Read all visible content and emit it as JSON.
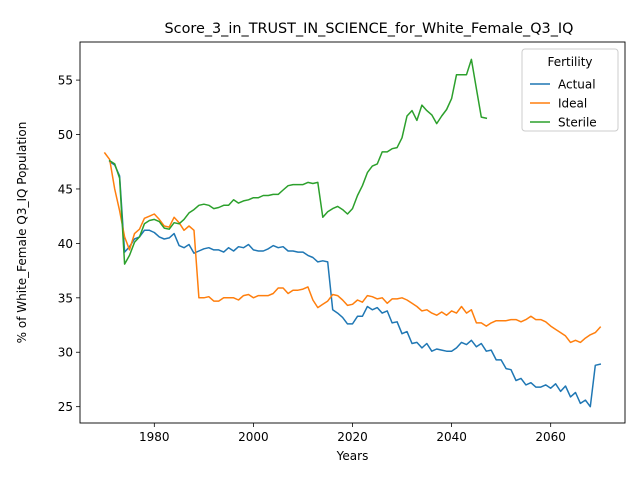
{
  "chart_data": {
    "type": "line",
    "title": "Score_3_in_TRUST_IN_SCIENCE_for_White_Female_Q3_IQ",
    "xlabel": "Years",
    "ylabel": "% of White_Female Q3_IQ Population",
    "xlim": [
      1965,
      2075
    ],
    "ylim": [
      23.5,
      58.5
    ],
    "xticks": [
      1980,
      2000,
      2020,
      2040,
      2060
    ],
    "yticks": [
      25,
      30,
      35,
      40,
      45,
      50,
      55
    ],
    "grid": false,
    "legend": {
      "title": "Fertility",
      "placement": "top-right"
    },
    "series": [
      {
        "name": "Actual",
        "color": "#1f77b4",
        "points": [
          [
            1971,
            47.5
          ],
          [
            1972,
            47.2
          ],
          [
            1973,
            46.2
          ],
          [
            1974,
            39.2
          ],
          [
            1975,
            39.7
          ],
          [
            1976,
            40.4
          ],
          [
            1977,
            40.6
          ],
          [
            1978,
            41.2
          ],
          [
            1979,
            41.2
          ],
          [
            1980,
            41.0
          ],
          [
            1981,
            40.6
          ],
          [
            1982,
            40.4
          ],
          [
            1983,
            40.5
          ],
          [
            1984,
            40.9
          ],
          [
            1985,
            39.8
          ],
          [
            1986,
            39.6
          ],
          [
            1987,
            39.9
          ],
          [
            1988,
            39.1
          ],
          [
            1989,
            39.3
          ],
          [
            1990,
            39.5
          ],
          [
            1991,
            39.6
          ],
          [
            1992,
            39.4
          ],
          [
            1993,
            39.4
          ],
          [
            1994,
            39.2
          ],
          [
            1995,
            39.6
          ],
          [
            1996,
            39.3
          ],
          [
            1997,
            39.7
          ],
          [
            1998,
            39.6
          ],
          [
            1999,
            39.9
          ],
          [
            2000,
            39.4
          ],
          [
            2001,
            39.3
          ],
          [
            2002,
            39.3
          ],
          [
            2003,
            39.5
          ],
          [
            2004,
            39.8
          ],
          [
            2005,
            39.6
          ],
          [
            2006,
            39.7
          ],
          [
            2007,
            39.3
          ],
          [
            2008,
            39.3
          ],
          [
            2009,
            39.2
          ],
          [
            2010,
            39.2
          ],
          [
            2011,
            38.9
          ],
          [
            2012,
            38.7
          ],
          [
            2013,
            38.3
          ],
          [
            2014,
            38.4
          ],
          [
            2015,
            38.3
          ],
          [
            2016,
            33.9
          ],
          [
            2017,
            33.6
          ],
          [
            2018,
            33.2
          ],
          [
            2019,
            32.6
          ],
          [
            2020,
            32.6
          ],
          [
            2021,
            33.3
          ],
          [
            2022,
            33.3
          ],
          [
            2023,
            34.2
          ],
          [
            2024,
            33.9
          ],
          [
            2025,
            34.1
          ],
          [
            2026,
            33.6
          ],
          [
            2027,
            33.8
          ],
          [
            2028,
            32.7
          ],
          [
            2029,
            32.8
          ],
          [
            2030,
            31.7
          ],
          [
            2031,
            31.9
          ],
          [
            2032,
            30.8
          ],
          [
            2033,
            30.9
          ],
          [
            2034,
            30.4
          ],
          [
            2035,
            30.8
          ],
          [
            2036,
            30.1
          ],
          [
            2037,
            30.3
          ],
          [
            2038,
            30.2
          ],
          [
            2039,
            30.1
          ],
          [
            2040,
            30.1
          ],
          [
            2041,
            30.4
          ],
          [
            2042,
            30.9
          ],
          [
            2043,
            30.7
          ],
          [
            2044,
            31.1
          ],
          [
            2045,
            30.5
          ],
          [
            2046,
            30.8
          ],
          [
            2047,
            30.1
          ],
          [
            2048,
            30.2
          ],
          [
            2049,
            29.3
          ],
          [
            2050,
            29.3
          ],
          [
            2051,
            28.5
          ],
          [
            2052,
            28.4
          ],
          [
            2053,
            27.4
          ],
          [
            2054,
            27.6
          ],
          [
            2055,
            27.0
          ],
          [
            2056,
            27.2
          ],
          [
            2057,
            26.8
          ],
          [
            2058,
            26.8
          ],
          [
            2059,
            27.0
          ],
          [
            2060,
            26.7
          ],
          [
            2061,
            27.1
          ],
          [
            2062,
            26.4
          ],
          [
            2063,
            26.9
          ],
          [
            2064,
            25.9
          ],
          [
            2065,
            26.3
          ],
          [
            2066,
            25.3
          ],
          [
            2067,
            25.6
          ],
          [
            2068,
            25.0
          ],
          [
            2069,
            28.8
          ],
          [
            2070,
            28.9
          ]
        ]
      },
      {
        "name": "Ideal",
        "color": "#ff7f0e",
        "points": [
          [
            1970,
            48.3
          ],
          [
            1971,
            47.7
          ],
          [
            1972,
            45.0
          ],
          [
            1973,
            43.0
          ],
          [
            1974,
            40.6
          ],
          [
            1975,
            39.4
          ],
          [
            1976,
            40.9
          ],
          [
            1977,
            41.3
          ],
          [
            1978,
            42.3
          ],
          [
            1979,
            42.5
          ],
          [
            1980,
            42.7
          ],
          [
            1981,
            42.2
          ],
          [
            1982,
            41.6
          ],
          [
            1983,
            41.5
          ],
          [
            1984,
            42.4
          ],
          [
            1985,
            41.9
          ],
          [
            1986,
            41.2
          ],
          [
            1987,
            41.6
          ],
          [
            1988,
            41.2
          ],
          [
            1989,
            35.0
          ],
          [
            1990,
            35.0
          ],
          [
            1991,
            35.1
          ],
          [
            1992,
            34.7
          ],
          [
            1993,
            34.7
          ],
          [
            1994,
            35.0
          ],
          [
            1995,
            35.0
          ],
          [
            1996,
            35.0
          ],
          [
            1997,
            34.8
          ],
          [
            1998,
            35.2
          ],
          [
            1999,
            35.3
          ],
          [
            2000,
            35.0
          ],
          [
            2001,
            35.2
          ],
          [
            2002,
            35.2
          ],
          [
            2003,
            35.2
          ],
          [
            2004,
            35.4
          ],
          [
            2005,
            35.9
          ],
          [
            2006,
            35.9
          ],
          [
            2007,
            35.4
          ],
          [
            2008,
            35.7
          ],
          [
            2009,
            35.7
          ],
          [
            2010,
            35.8
          ],
          [
            2011,
            36.0
          ],
          [
            2012,
            34.8
          ],
          [
            2013,
            34.1
          ],
          [
            2014,
            34.4
          ],
          [
            2015,
            34.7
          ],
          [
            2016,
            35.3
          ],
          [
            2017,
            35.2
          ],
          [
            2018,
            34.8
          ],
          [
            2019,
            34.3
          ],
          [
            2020,
            34.4
          ],
          [
            2021,
            34.8
          ],
          [
            2022,
            34.6
          ],
          [
            2023,
            35.2
          ],
          [
            2024,
            35.1
          ],
          [
            2025,
            34.9
          ],
          [
            2026,
            35.0
          ],
          [
            2027,
            34.5
          ],
          [
            2028,
            34.9
          ],
          [
            2029,
            34.9
          ],
          [
            2030,
            35.0
          ],
          [
            2031,
            34.8
          ],
          [
            2032,
            34.5
          ],
          [
            2033,
            34.2
          ],
          [
            2034,
            33.8
          ],
          [
            2035,
            33.9
          ],
          [
            2036,
            33.6
          ],
          [
            2037,
            33.4
          ],
          [
            2038,
            33.7
          ],
          [
            2039,
            33.4
          ],
          [
            2040,
            33.8
          ],
          [
            2041,
            33.6
          ],
          [
            2042,
            34.2
          ],
          [
            2043,
            33.6
          ],
          [
            2044,
            33.9
          ],
          [
            2045,
            32.7
          ],
          [
            2046,
            32.7
          ],
          [
            2047,
            32.4
          ],
          [
            2048,
            32.7
          ],
          [
            2049,
            32.9
          ],
          [
            2050,
            32.9
          ],
          [
            2051,
            32.9
          ],
          [
            2052,
            33.0
          ],
          [
            2053,
            33.0
          ],
          [
            2054,
            32.8
          ],
          [
            2055,
            33.0
          ],
          [
            2056,
            33.3
          ],
          [
            2057,
            33.0
          ],
          [
            2058,
            33.0
          ],
          [
            2059,
            32.8
          ],
          [
            2060,
            32.4
          ],
          [
            2061,
            32.1
          ],
          [
            2062,
            31.8
          ],
          [
            2063,
            31.5
          ],
          [
            2064,
            30.9
          ],
          [
            2065,
            31.1
          ],
          [
            2066,
            30.9
          ],
          [
            2067,
            31.3
          ],
          [
            2068,
            31.6
          ],
          [
            2069,
            31.8
          ],
          [
            2070,
            32.3
          ]
        ]
      },
      {
        "name": "Sterile",
        "color": "#2ca02c",
        "points": [
          [
            1971,
            47.6
          ],
          [
            1972,
            47.3
          ],
          [
            1973,
            46.0
          ],
          [
            1974,
            38.1
          ],
          [
            1975,
            38.9
          ],
          [
            1976,
            40.1
          ],
          [
            1977,
            40.6
          ],
          [
            1978,
            41.8
          ],
          [
            1979,
            42.1
          ],
          [
            1980,
            42.2
          ],
          [
            1981,
            42.0
          ],
          [
            1982,
            41.4
          ],
          [
            1983,
            41.3
          ],
          [
            1984,
            41.9
          ],
          [
            1985,
            41.8
          ],
          [
            1986,
            42.2
          ],
          [
            1987,
            42.8
          ],
          [
            1988,
            43.1
          ],
          [
            1989,
            43.5
          ],
          [
            1990,
            43.6
          ],
          [
            1991,
            43.5
          ],
          [
            1992,
            43.2
          ],
          [
            1993,
            43.3
          ],
          [
            1994,
            43.5
          ],
          [
            1995,
            43.5
          ],
          [
            1996,
            44.0
          ],
          [
            1997,
            43.7
          ],
          [
            1998,
            43.9
          ],
          [
            1999,
            44.0
          ],
          [
            2000,
            44.2
          ],
          [
            2001,
            44.2
          ],
          [
            2002,
            44.4
          ],
          [
            2003,
            44.4
          ],
          [
            2004,
            44.5
          ],
          [
            2005,
            44.5
          ],
          [
            2006,
            44.9
          ],
          [
            2007,
            45.3
          ],
          [
            2008,
            45.4
          ],
          [
            2009,
            45.4
          ],
          [
            2010,
            45.4
          ],
          [
            2011,
            45.6
          ],
          [
            2012,
            45.5
          ],
          [
            2013,
            45.6
          ],
          [
            2014,
            42.4
          ],
          [
            2015,
            42.9
          ],
          [
            2016,
            43.2
          ],
          [
            2017,
            43.4
          ],
          [
            2018,
            43.1
          ],
          [
            2019,
            42.7
          ],
          [
            2020,
            43.2
          ],
          [
            2021,
            44.4
          ],
          [
            2022,
            45.3
          ],
          [
            2023,
            46.5
          ],
          [
            2024,
            47.1
          ],
          [
            2025,
            47.3
          ],
          [
            2026,
            48.4
          ],
          [
            2027,
            48.4
          ],
          [
            2028,
            48.7
          ],
          [
            2029,
            48.8
          ],
          [
            2030,
            49.7
          ],
          [
            2031,
            51.7
          ],
          [
            2032,
            52.2
          ],
          [
            2033,
            51.3
          ],
          [
            2034,
            52.7
          ],
          [
            2035,
            52.2
          ],
          [
            2036,
            51.8
          ],
          [
            2037,
            51.0
          ],
          [
            2038,
            51.7
          ],
          [
            2039,
            52.3
          ],
          [
            2040,
            53.3
          ],
          [
            2041,
            55.5
          ],
          [
            2042,
            55.5
          ],
          [
            2043,
            55.5
          ],
          [
            2044,
            56.9
          ],
          [
            2045,
            54.2
          ],
          [
            2046,
            51.6
          ],
          [
            2047,
            51.5
          ]
        ]
      }
    ]
  }
}
